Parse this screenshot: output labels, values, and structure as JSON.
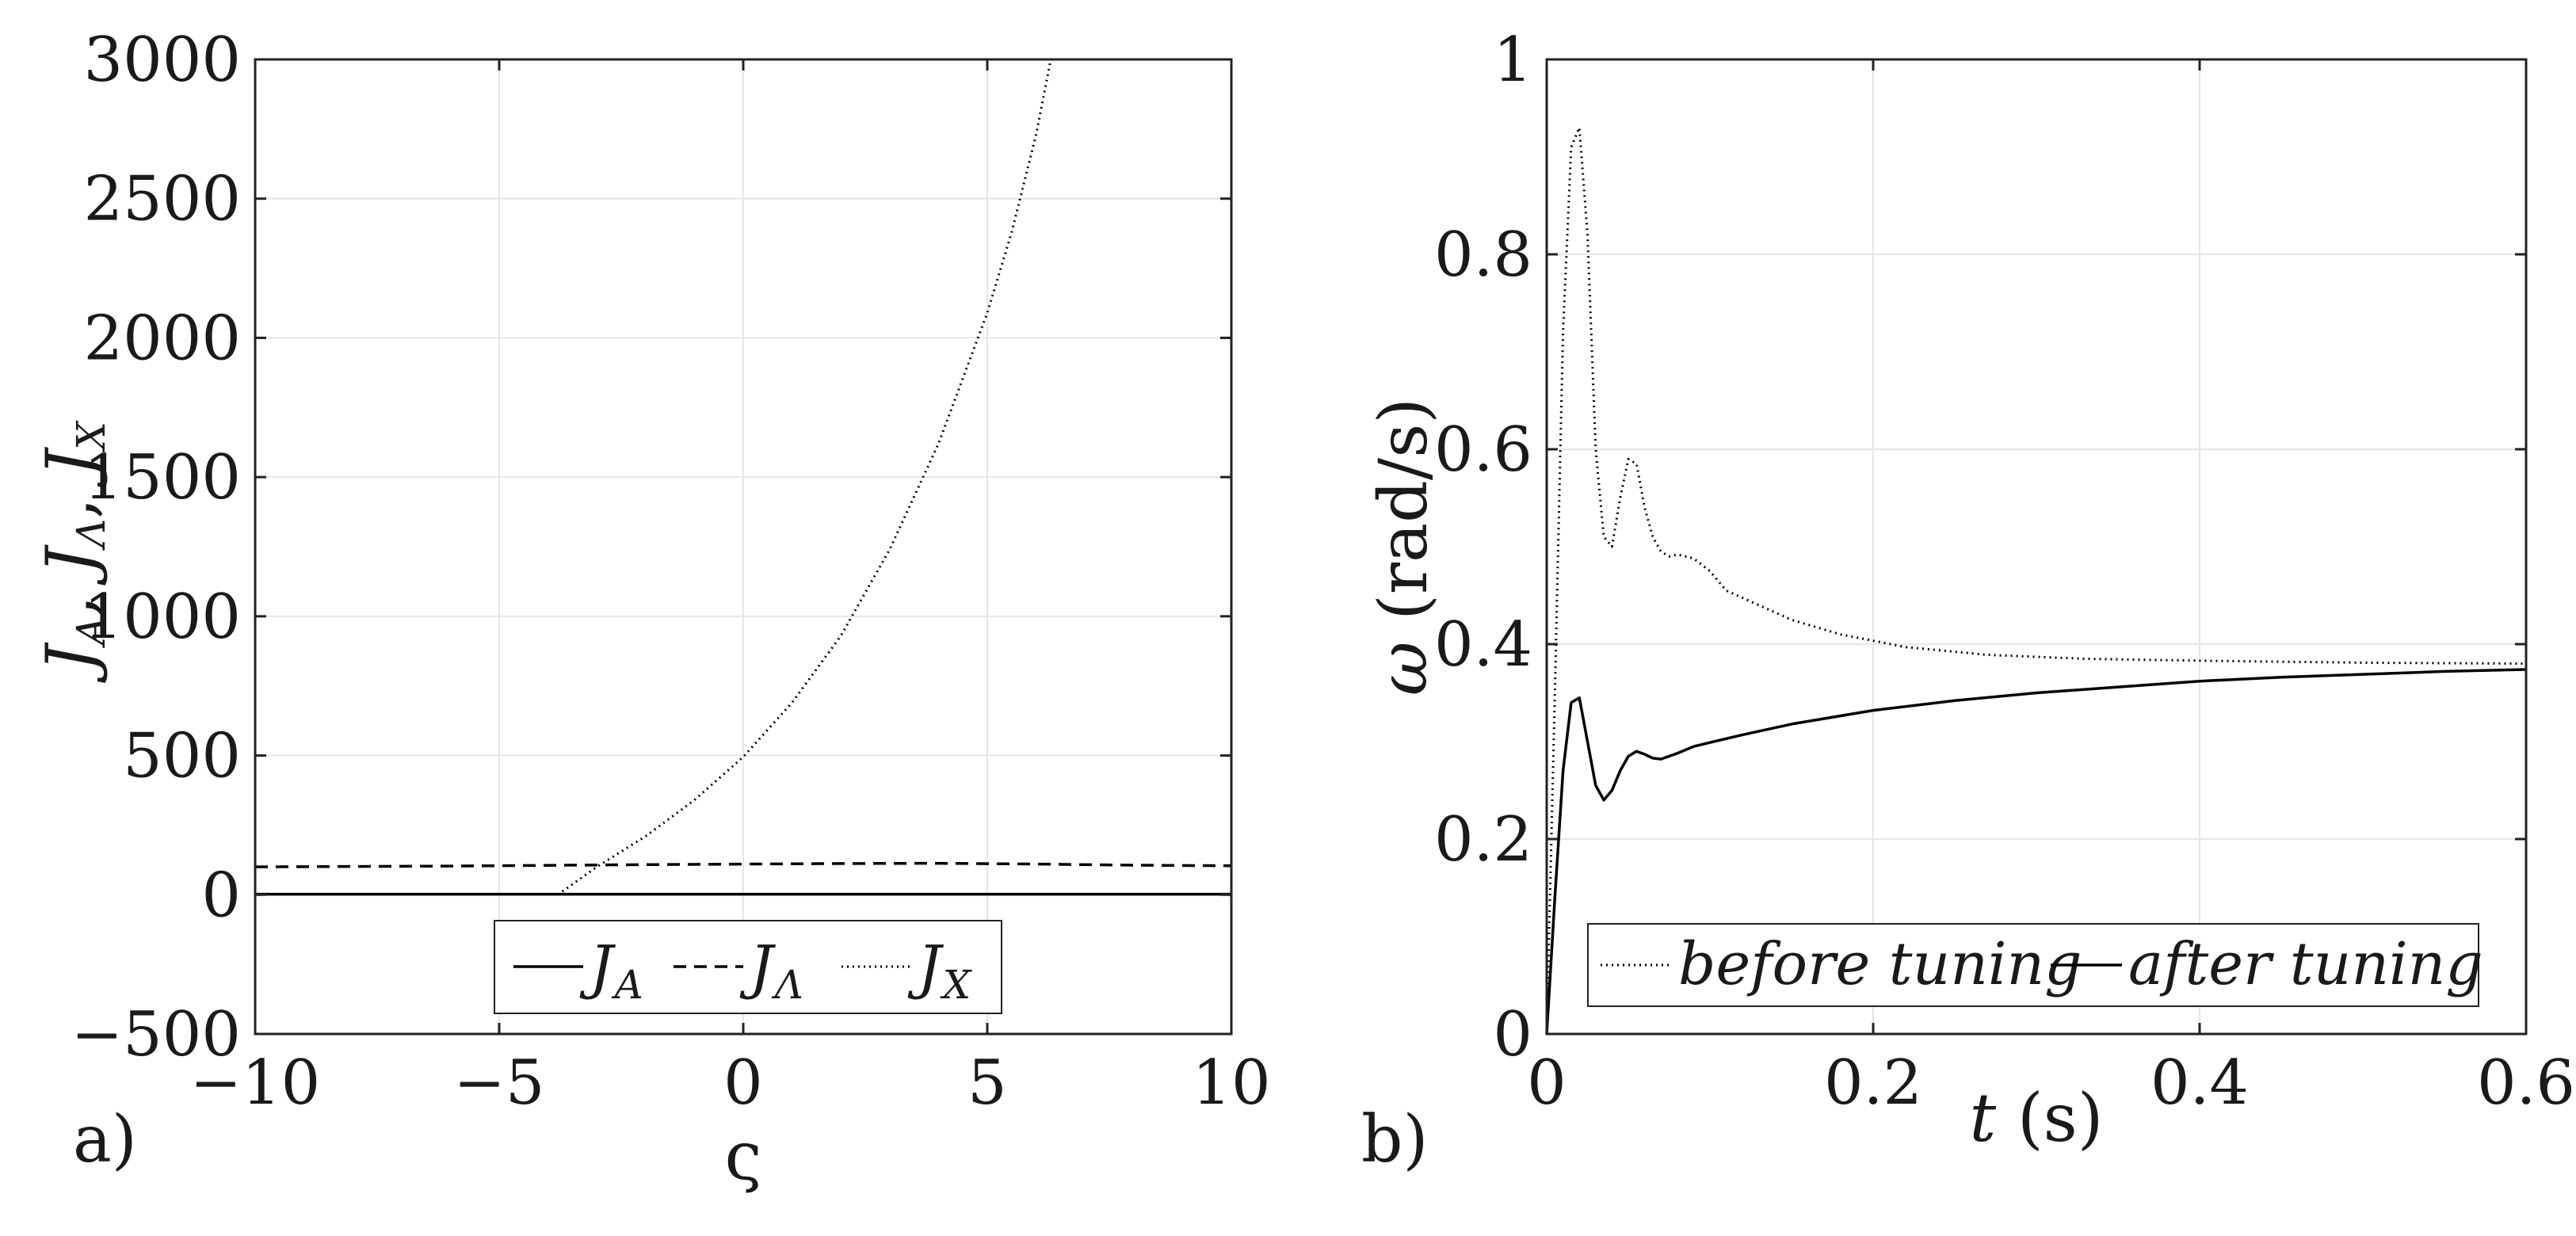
{
  "chart_data": [
    {
      "type": "line",
      "panel_label": "a)",
      "xlabel": "ς",
      "ylabel": "J_A, J_Λ, J_X",
      "ylabel_parts": [
        "J",
        "A",
        ", ",
        "J",
        "Λ",
        ", ",
        "J",
        "X"
      ],
      "xlim": [
        -10,
        10
      ],
      "ylim": [
        -500,
        3000
      ],
      "xticks": [
        -10,
        -5,
        0,
        5,
        10
      ],
      "xtick_labels": [
        "−10",
        "−5",
        "0",
        "5",
        "10"
      ],
      "yticks": [
        -500,
        0,
        500,
        1000,
        1500,
        2000,
        2500,
        3000
      ],
      "ytick_labels": [
        "−500",
        "0",
        "500",
        "1000",
        "1500",
        "2000",
        "2500",
        "3000"
      ],
      "grid": true,
      "legend_position": "bottom-center",
      "series": [
        {
          "name": "J_A",
          "label_main": "J",
          "label_sub": "A",
          "style": "solid",
          "x": [
            -10,
            -5,
            0,
            5,
            10
          ],
          "y": [
            2,
            2,
            2,
            2,
            2
          ]
        },
        {
          "name": "J_Λ",
          "label_main": "J",
          "label_sub": "Λ",
          "style": "dashed",
          "x": [
            -10,
            -6,
            -2,
            0,
            2,
            4,
            6,
            8,
            10
          ],
          "y": [
            100,
            103,
            108,
            110,
            112,
            113,
            110,
            106,
            104
          ]
        },
        {
          "name": "J_X",
          "label_main": "J",
          "label_sub": "X",
          "style": "dotted",
          "x": [
            -3.8,
            -3.0,
            -2.0,
            -1.0,
            0,
            1.0,
            2.0,
            3.0,
            4.0,
            5.0,
            5.5,
            6.0,
            6.3
          ],
          "y": [
            0,
            100,
            210,
            340,
            495,
            690,
            930,
            1240,
            1620,
            2090,
            2380,
            2730,
            3000
          ]
        }
      ]
    },
    {
      "type": "line",
      "panel_label": "b)",
      "xlabel": "t (s)",
      "xlabel_var": "t",
      "xlabel_unit": " (s)",
      "ylabel": "ω (rad/s)",
      "ylabel_var": "ω",
      "ylabel_unit": " (rad/s)",
      "xlim": [
        0,
        0.6
      ],
      "ylim": [
        0,
        1
      ],
      "xticks": [
        0,
        0.2,
        0.4,
        0.6
      ],
      "xtick_labels": [
        "0",
        "0.2",
        "0.4",
        "0.6"
      ],
      "yticks": [
        0,
        0.2,
        0.4,
        0.6,
        0.8,
        1
      ],
      "ytick_labels": [
        "0",
        "0.2",
        "0.4",
        "0.6",
        "0.8",
        "1"
      ],
      "grid": true,
      "legend_position": "bottom-center",
      "series": [
        {
          "name": "before tuning",
          "style": "dotted",
          "x": [
            0,
            0.005,
            0.01,
            0.015,
            0.02,
            0.025,
            0.03,
            0.035,
            0.04,
            0.045,
            0.05,
            0.055,
            0.06,
            0.065,
            0.07,
            0.075,
            0.08,
            0.09,
            0.1,
            0.11,
            0.13,
            0.15,
            0.18,
            0.22,
            0.27,
            0.33,
            0.4,
            0.5,
            0.6
          ],
          "y": [
            0,
            0.35,
            0.72,
            0.91,
            0.93,
            0.82,
            0.6,
            0.51,
            0.5,
            0.55,
            0.59,
            0.585,
            0.54,
            0.51,
            0.495,
            0.49,
            0.492,
            0.488,
            0.475,
            0.455,
            0.44,
            0.425,
            0.41,
            0.397,
            0.389,
            0.385,
            0.383,
            0.381,
            0.38
          ]
        },
        {
          "name": "after tuning",
          "style": "solid",
          "x": [
            0,
            0.005,
            0.01,
            0.015,
            0.02,
            0.025,
            0.03,
            0.035,
            0.04,
            0.045,
            0.05,
            0.055,
            0.06,
            0.065,
            0.07,
            0.08,
            0.09,
            0.1,
            0.12,
            0.15,
            0.2,
            0.25,
            0.3,
            0.35,
            0.4,
            0.45,
            0.5,
            0.55,
            0.6
          ],
          "y": [
            0,
            0.14,
            0.27,
            0.34,
            0.345,
            0.3,
            0.255,
            0.24,
            0.25,
            0.27,
            0.285,
            0.29,
            0.287,
            0.283,
            0.282,
            0.288,
            0.295,
            0.299,
            0.307,
            0.318,
            0.332,
            0.342,
            0.35,
            0.356,
            0.362,
            0.366,
            0.369,
            0.372,
            0.374
          ]
        }
      ]
    }
  ]
}
